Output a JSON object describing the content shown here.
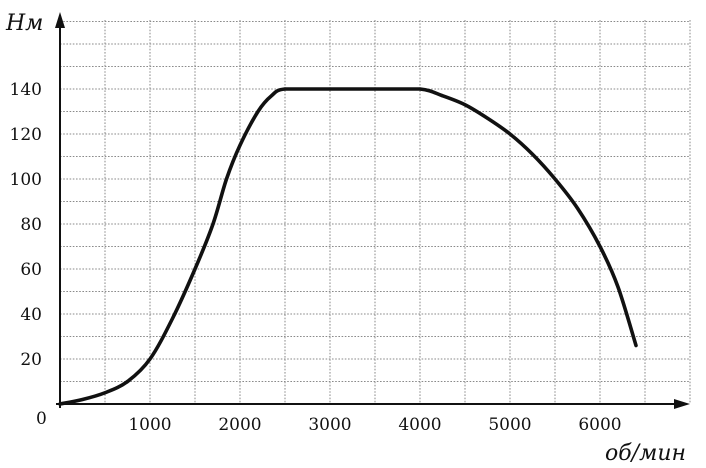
{
  "chart_data": {
    "type": "line",
    "xlabel": "об/мин",
    "ylabel": "Нм",
    "origin_label": "0",
    "xlim": [
      0,
      7000
    ],
    "ylim": [
      0,
      160
    ],
    "grid": true,
    "grid_step_x": 500,
    "grid_step_y": 10,
    "x_ticks": [
      1000,
      2000,
      3000,
      4000,
      5000,
      6000
    ],
    "x_tick_labels": [
      "1000",
      "2000",
      "3000",
      "4000",
      "5000",
      "6000"
    ],
    "y_ticks": [
      20,
      40,
      60,
      80,
      100,
      120,
      140
    ],
    "y_tick_labels": [
      "20",
      "40",
      "60",
      "80",
      "100",
      "120",
      "140"
    ],
    "series": [
      {
        "x": [
          0,
          250,
          500,
          750,
          1000,
          1250,
          1500,
          1700,
          1850,
          2000,
          2200,
          2350,
          2500,
          3000,
          3500,
          4000,
          4250,
          4500,
          4750,
          5000,
          5250,
          5500,
          5750,
          6000,
          6200,
          6400
        ],
        "y": [
          0,
          2,
          5,
          10,
          20,
          38,
          60,
          80,
          100,
          115,
          130,
          137,
          140,
          140,
          140,
          140,
          137,
          133,
          127,
          120,
          111,
          100,
          87,
          70,
          52,
          26
        ]
      }
    ],
    "colors": {
      "curve": "#111111",
      "axis": "#111111",
      "grid": "#8a8a8a"
    }
  }
}
